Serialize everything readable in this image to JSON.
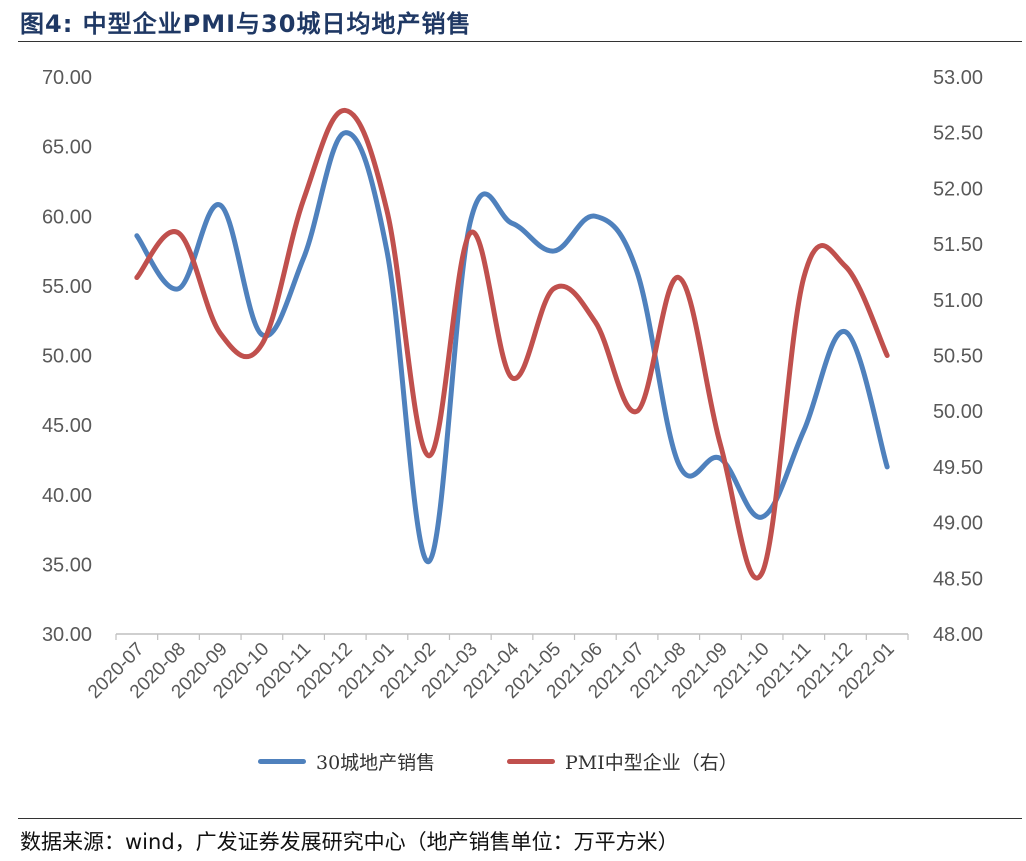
{
  "header": {
    "title": "图4:  中型企业PMI与30城日均地产销售"
  },
  "footer": {
    "source": "数据来源：wind，广发证券发展研究中心（地产销售单位：万平方米）"
  },
  "chart_data": {
    "type": "line",
    "categories": [
      "2020-07",
      "2020-08",
      "2020-09",
      "2020-10",
      "2020-11",
      "2020-12",
      "2021-01",
      "2021-02",
      "2021-03",
      "2021-04",
      "2021-05",
      "2021-06",
      "2021-07",
      "2021-08",
      "2021-09",
      "2021-10",
      "2021-11",
      "2021-12",
      "2022-01"
    ],
    "y_left": {
      "lim": [
        30,
        70
      ],
      "ticks": [
        "70.00",
        "65.00",
        "60.00",
        "55.00",
        "50.00",
        "45.00",
        "40.00",
        "35.00",
        "30.00"
      ]
    },
    "y_right": {
      "lim": [
        48,
        53
      ],
      "ticks": [
        "53.00",
        "52.50",
        "52.00",
        "51.50",
        "51.00",
        "50.50",
        "50.00",
        "49.50",
        "49.00",
        "48.50",
        "48.00"
      ]
    },
    "grid": false,
    "legend_position": "bottom",
    "series": [
      {
        "name": "30城地产销售",
        "axis": "left",
        "color": "#4f81bd",
        "values": [
          58.6,
          54.8,
          60.8,
          51.5,
          57.0,
          66.0,
          57.5,
          35.2,
          59.6,
          59.5,
          57.5,
          60.0,
          56.0,
          42.2,
          42.6,
          38.4,
          44.6,
          51.7,
          42.0
        ]
      },
      {
        "name": "PMI中型企业（右）",
        "axis": "right",
        "color": "#c0504d",
        "values": [
          51.2,
          51.6,
          50.7,
          50.6,
          51.9,
          52.7,
          51.8,
          49.6,
          51.6,
          50.3,
          51.1,
          50.8,
          50.0,
          51.2,
          49.7,
          48.55,
          51.2,
          51.3,
          50.5
        ]
      }
    ]
  }
}
